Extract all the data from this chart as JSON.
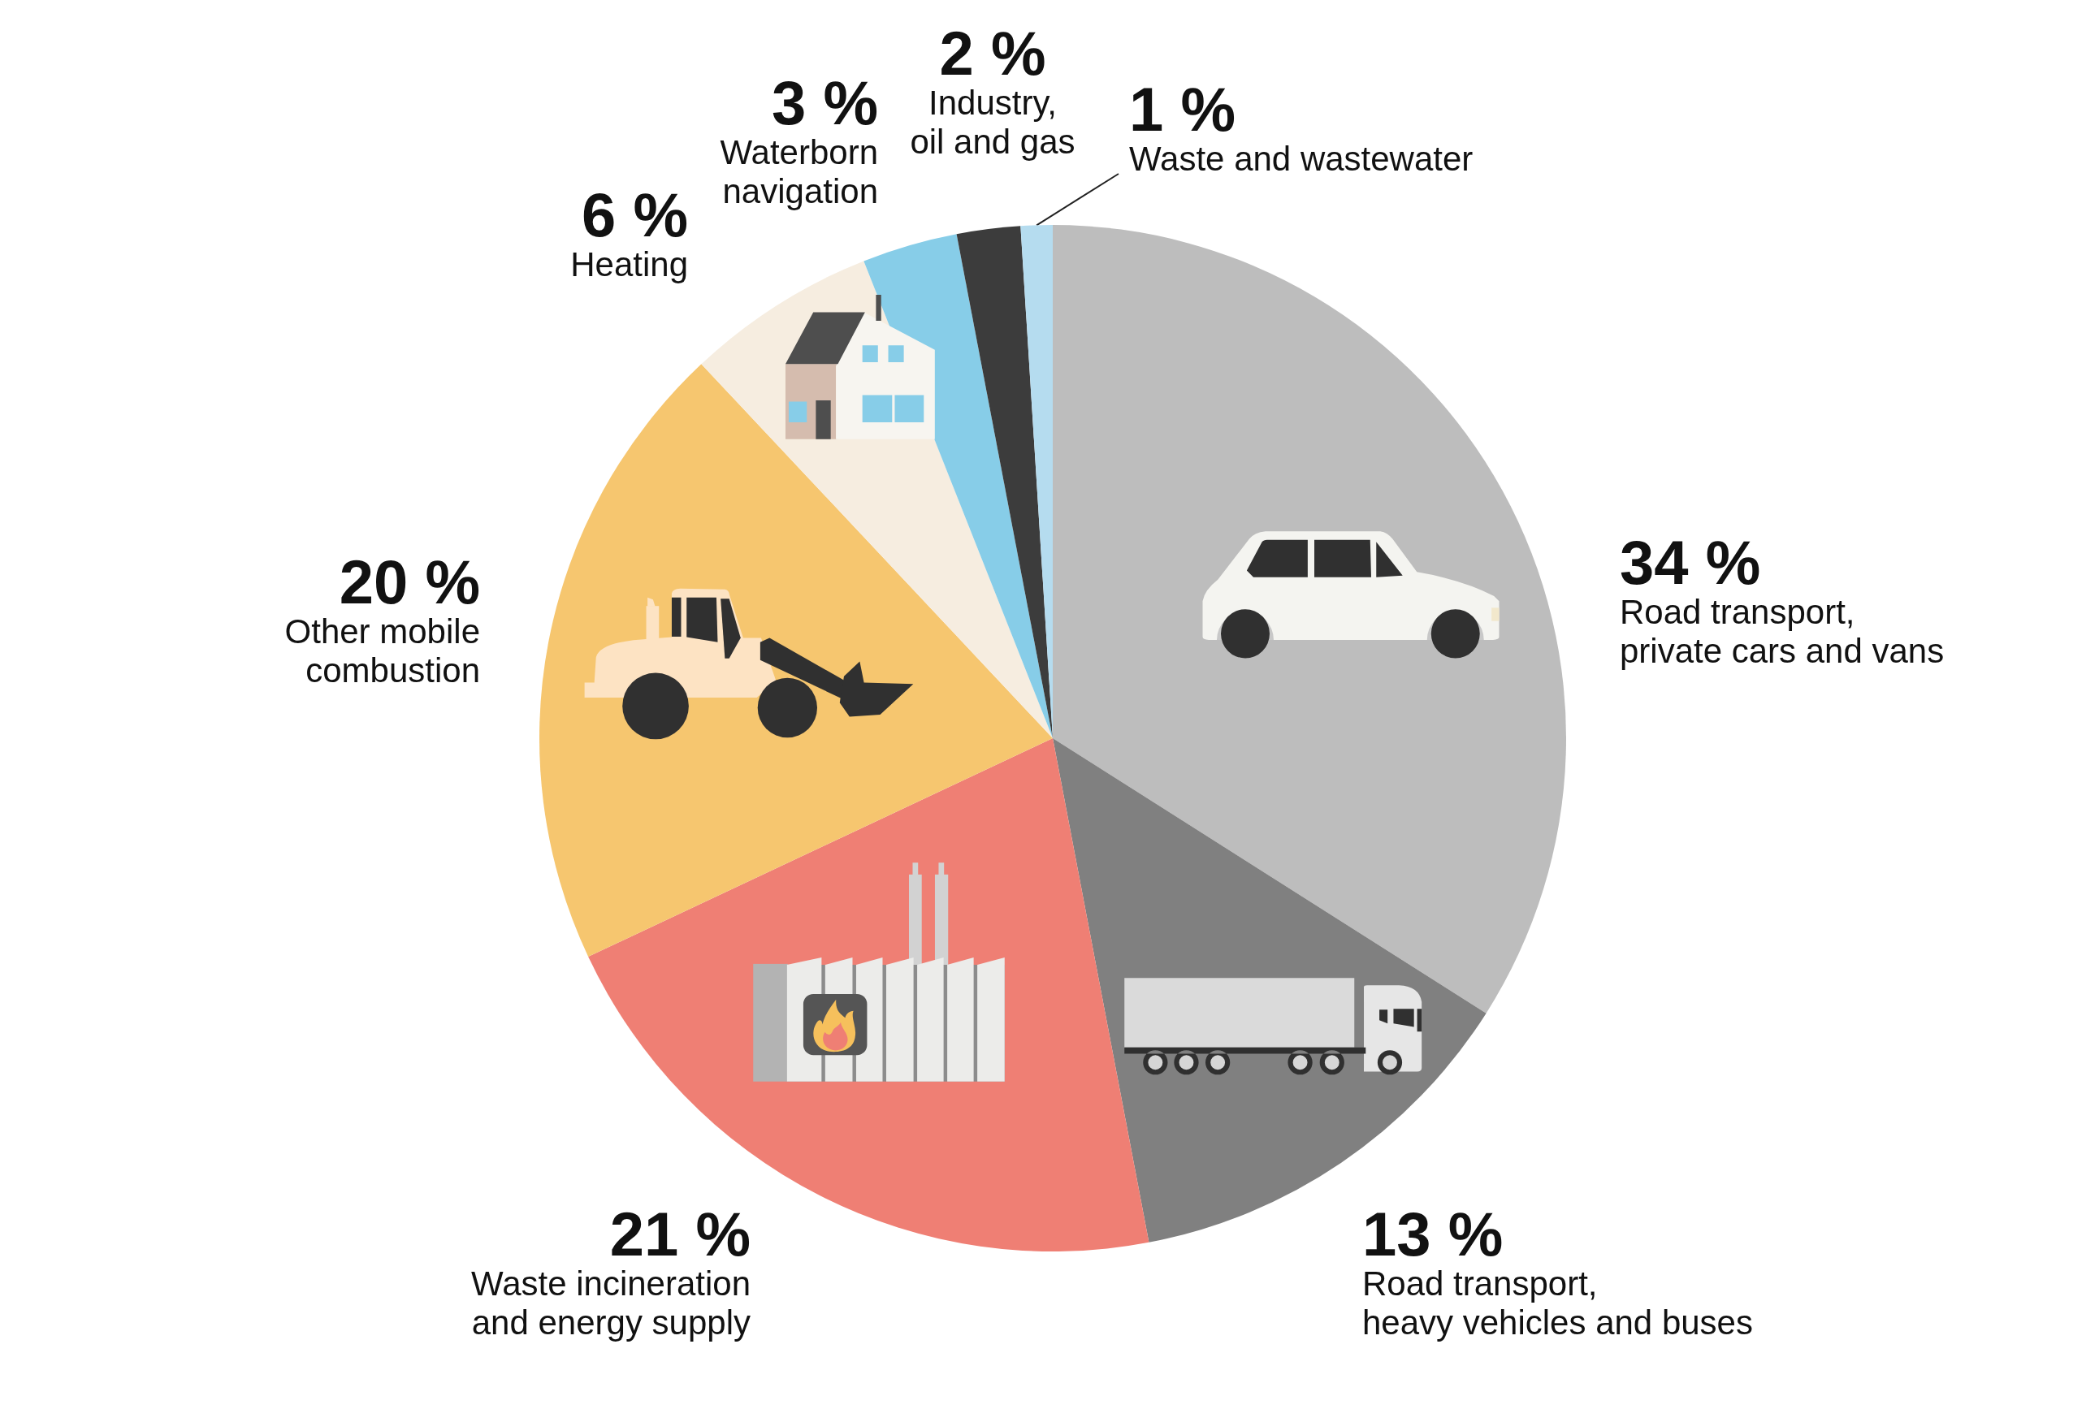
{
  "chart_data": {
    "type": "pie",
    "categories": [
      "Road transport,\nprivate cars and vans",
      "Road transport,\nheavy vehicles and buses",
      "Waste incineration\nand energy supply",
      "Other mobile\ncombustion",
      "Heating",
      "Waterborn\nnavigation",
      "Industry,\noil and gas",
      "Waste and wastewater"
    ],
    "values": [
      34,
      13,
      21,
      20,
      6,
      3,
      2,
      1
    ],
    "colors": [
      "#bdbdbd",
      "#808080",
      "#ef7f74",
      "#f6c66f",
      "#f6ede0",
      "#87cde8",
      "#3c3c3c",
      "#b5dcef"
    ],
    "value_labels": [
      "34 %",
      "13 %",
      "21 %",
      "20 %",
      "6 %",
      "3 %",
      "2 %",
      "1 %"
    ]
  }
}
